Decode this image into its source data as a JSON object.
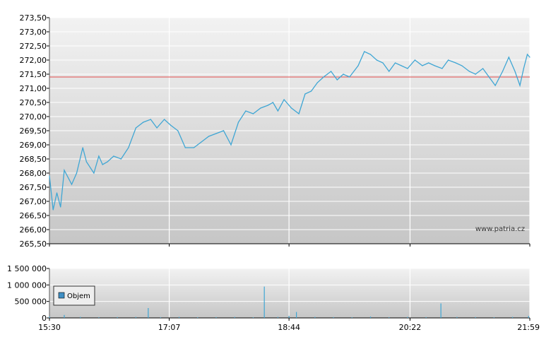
{
  "watermark": "www.patria.cz",
  "colors": {
    "price_line": "#3fa6d4",
    "reference_line": "#e24a4a",
    "volume_bar": "#3fa6d4",
    "legend_swatch": "#3f8fc4",
    "plot_bg_top": "#f2f2f2",
    "plot_bg_bottom": "#c6c6c6",
    "grid": "#ffffff",
    "axis": "#000000"
  },
  "chart_data": [
    {
      "type": "line",
      "title": "",
      "xlabel": "",
      "ylabel": "",
      "ylim": [
        265.5,
        273.5
      ],
      "y_ticks": [
        "265,50",
        "266,00",
        "266,50",
        "267,00",
        "267,50",
        "268,00",
        "268,50",
        "269,00",
        "269,50",
        "270,00",
        "270,50",
        "271,00",
        "271,50",
        "272,00",
        "272,50",
        "273,00",
        "273,50"
      ],
      "x_ticks": [
        "15:30",
        "17:07",
        "18:44",
        "20:22",
        "21:59"
      ],
      "grid": true,
      "reference_line": 271.4,
      "series": [
        {
          "name": "",
          "x": [
            "15:30",
            "15:33",
            "15:36",
            "15:39",
            "15:42",
            "15:48",
            "15:52",
            "15:57",
            "16:00",
            "16:06",
            "16:10",
            "16:13",
            "16:17",
            "16:22",
            "16:28",
            "16:34",
            "16:40",
            "16:46",
            "16:52",
            "16:57",
            "17:03",
            "17:08",
            "17:14",
            "17:20",
            "17:27",
            "17:33",
            "17:39",
            "17:45",
            "17:51",
            "17:57",
            "18:03",
            "18:09",
            "18:15",
            "18:21",
            "18:27",
            "18:31",
            "18:35",
            "18:40",
            "18:46",
            "18:52",
            "18:57",
            "19:02",
            "19:07",
            "19:12",
            "19:18",
            "19:23",
            "19:28",
            "19:33",
            "19:40",
            "19:45",
            "19:50",
            "19:55",
            "20:00",
            "20:05",
            "20:10",
            "20:15",
            "20:20",
            "20:26",
            "20:32",
            "20:37",
            "20:42",
            "20:48",
            "20:53",
            "20:59",
            "21:04",
            "21:10",
            "21:15",
            "21:21",
            "21:26",
            "21:31",
            "21:37",
            "21:42",
            "21:47",
            "21:51",
            "21:54",
            "21:57",
            "21:59"
          ],
          "values": [
            267.9,
            266.7,
            267.3,
            266.8,
            268.1,
            267.6,
            268.0,
            268.9,
            268.4,
            268.0,
            268.6,
            268.3,
            268.4,
            268.6,
            268.5,
            268.9,
            269.6,
            269.8,
            269.9,
            269.6,
            269.9,
            269.7,
            269.5,
            268.9,
            268.9,
            269.1,
            269.3,
            269.4,
            269.5,
            269.0,
            269.8,
            270.2,
            270.1,
            270.3,
            270.4,
            270.5,
            270.2,
            270.6,
            270.3,
            270.1,
            270.8,
            270.9,
            271.2,
            271.4,
            271.6,
            271.3,
            271.5,
            271.4,
            271.8,
            272.3,
            272.2,
            272.0,
            271.9,
            271.6,
            271.9,
            271.8,
            271.7,
            272.0,
            271.8,
            271.9,
            271.8,
            271.7,
            272.0,
            271.9,
            271.8,
            271.6,
            271.5,
            271.7,
            271.4,
            271.1,
            271.6,
            272.1,
            271.6,
            271.1,
            271.7,
            272.2,
            272.1
          ]
        }
      ],
      "annotations": [
        "www.patria.cz"
      ]
    },
    {
      "type": "bar",
      "title": "",
      "xlabel": "",
      "ylabel": "",
      "ylim": [
        0,
        1500000
      ],
      "y_ticks": [
        "0",
        "500 000",
        "1 000 000",
        "1 500 000"
      ],
      "x_ticks": [
        "15:30",
        "17:07",
        "18:44",
        "20:22",
        "21:59"
      ],
      "grid": true,
      "legend": {
        "placement": "top-left",
        "entries": [
          "Objem"
        ]
      },
      "series": [
        {
          "name": "Objem",
          "x": [
            "15:30",
            "15:42",
            "15:55",
            "16:10",
            "16:25",
            "16:40",
            "16:50",
            "17:00",
            "17:15",
            "17:30",
            "17:45",
            "18:00",
            "18:15",
            "18:24",
            "18:35",
            "18:44",
            "18:50",
            "19:05",
            "19:20",
            "19:35",
            "19:50",
            "20:05",
            "20:20",
            "20:35",
            "20:47",
            "21:00",
            "21:15",
            "21:30",
            "21:45",
            "21:58"
          ],
          "values": [
            40000,
            90000,
            30000,
            20000,
            25000,
            30000,
            300000,
            20000,
            30000,
            20000,
            25000,
            30000,
            20000,
            950000,
            30000,
            60000,
            180000,
            30000,
            25000,
            20000,
            40000,
            20000,
            30000,
            25000,
            440000,
            30000,
            25000,
            20000,
            30000,
            60000
          ]
        }
      ]
    }
  ]
}
